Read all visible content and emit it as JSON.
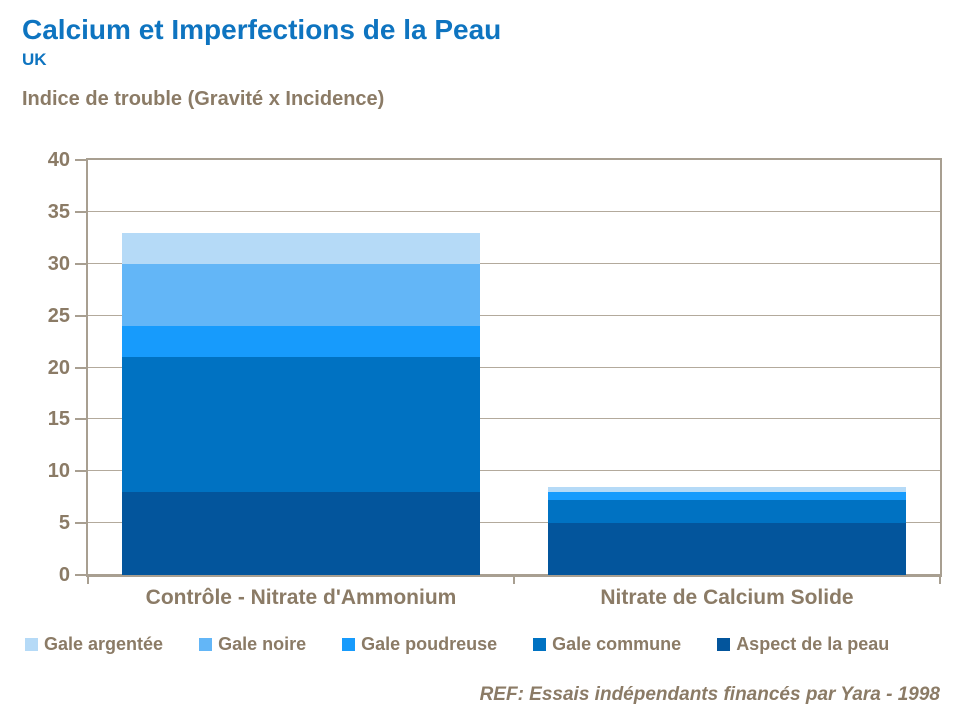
{
  "header": {
    "title": "Calcium et Imperfections de la Peau",
    "subtitle": "UK",
    "axis_title": "Indice de trouble (Gravité x Incidence)"
  },
  "footer": {
    "ref": "REF: Essais indépendants financés par Yara - 1998"
  },
  "colors": {
    "title_blue": "#0E74C0",
    "text_brown": "#8B7B66",
    "frame_taupe": "#A89F91",
    "gridline": "#B3AA9C"
  },
  "chart_data": {
    "type": "bar",
    "stacked": true,
    "title": "Calcium et Imperfections de la Peau",
    "subtitle": "UK",
    "ylabel": "Indice de trouble (Gravité x Incidence)",
    "categories": [
      "Contrôle - Nitrate d'Ammonium",
      "Nitrate de Calcium Solide"
    ],
    "series": [
      {
        "name": "Gale argentée",
        "color": "#B5DAF7",
        "values": [
          3,
          0.5
        ]
      },
      {
        "name": "Gale noire",
        "color": "#63B6F7",
        "values": [
          6,
          0
        ]
      },
      {
        "name": "Gale poudreuse",
        "color": "#179BFC",
        "values": [
          3,
          0.75
        ]
      },
      {
        "name": "Gale commune",
        "color": "#0072C2",
        "values": [
          13,
          2.25
        ]
      },
      {
        "name": "Aspect de la peau",
        "color": "#03559C",
        "values": [
          8,
          5
        ]
      }
    ],
    "totals": [
      33,
      8.5
    ],
    "ylim": [
      0,
      40
    ],
    "ytick_step": 5,
    "ytick_labels": [
      "0",
      "5",
      "10",
      "15",
      "20",
      "25",
      "30",
      "35",
      "40"
    ],
    "grid": true,
    "legend_position": "bottom",
    "bar_width_fraction": 0.84
  }
}
